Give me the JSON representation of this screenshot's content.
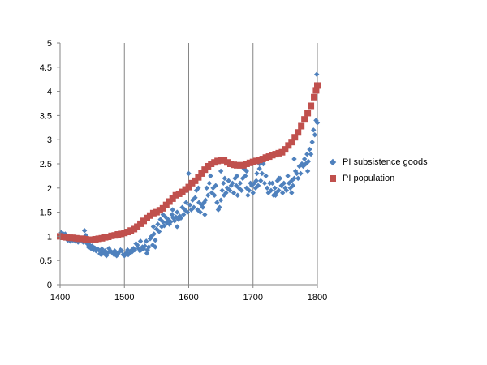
{
  "chart_data": {
    "type": "scatter",
    "xlim": [
      1400,
      1800
    ],
    "ylim": [
      0,
      5
    ],
    "x_ticks": [
      1400,
      1500,
      1600,
      1700,
      1800
    ],
    "x_tick_labels": [
      "1400",
      "1500",
      "1600",
      "1700",
      "1800"
    ],
    "y_ticks": [
      0,
      0.5,
      1,
      1.5,
      2,
      2.5,
      3,
      3.5,
      4,
      4.5,
      5
    ],
    "y_tick_labels": [
      "0",
      "0.5",
      "1",
      "1.5",
      "2",
      "2.5",
      "3",
      "3.5",
      "4",
      "4.5",
      "5"
    ],
    "grid": "vertical",
    "legend_position": "right",
    "series": [
      {
        "name": "PI subsistence goods",
        "color": "#4F81BD",
        "marker": "diamond",
        "points": [
          [
            1400,
            1.0
          ],
          [
            1402,
            1.08
          ],
          [
            1404,
            1.02
          ],
          [
            1406,
            0.97
          ],
          [
            1408,
            1.05
          ],
          [
            1410,
            0.95
          ],
          [
            1412,
            0.92
          ],
          [
            1414,
            0.98
          ],
          [
            1416,
            0.9
          ],
          [
            1418,
            0.94
          ],
          [
            1420,
            0.92
          ],
          [
            1422,
            0.95
          ],
          [
            1424,
            0.9
          ],
          [
            1426,
            0.93
          ],
          [
            1428,
            0.88
          ],
          [
            1430,
            0.92
          ],
          [
            1432,
            0.95
          ],
          [
            1434,
            0.9
          ],
          [
            1436,
            0.88
          ],
          [
            1438,
            1.12
          ],
          [
            1440,
            1.02
          ],
          [
            1442,
            0.85
          ],
          [
            1444,
            0.78
          ],
          [
            1446,
            0.82
          ],
          [
            1448,
            0.75
          ],
          [
            1450,
            0.8
          ],
          [
            1452,
            0.72
          ],
          [
            1454,
            0.76
          ],
          [
            1456,
            0.7
          ],
          [
            1458,
            0.74
          ],
          [
            1460,
            0.72
          ],
          [
            1462,
            0.64
          ],
          [
            1464,
            0.62
          ],
          [
            1466,
            0.68
          ],
          [
            1468,
            0.65
          ],
          [
            1470,
            0.7
          ],
          [
            1472,
            0.6
          ],
          [
            1474,
            0.66
          ],
          [
            1476,
            0.75
          ],
          [
            1478,
            0.7
          ],
          [
            1480,
            0.68
          ],
          [
            1482,
            0.65
          ],
          [
            1484,
            0.62
          ],
          [
            1486,
            0.66
          ],
          [
            1488,
            0.6
          ],
          [
            1490,
            0.64
          ],
          [
            1492,
            0.68
          ],
          [
            1494,
            0.72
          ],
          [
            1496,
            0.7
          ],
          [
            1498,
            0.62
          ],
          [
            1500,
            0.6
          ],
          [
            1502,
            0.64
          ],
          [
            1504,
            0.66
          ],
          [
            1506,
            0.62
          ],
          [
            1508,
            0.65
          ],
          [
            1510,
            0.7
          ],
          [
            1512,
            0.68
          ],
          [
            1514,
            0.75
          ],
          [
            1516,
            0.72
          ],
          [
            1518,
            0.85
          ],
          [
            1520,
            0.82
          ],
          [
            1522,
            0.75
          ],
          [
            1524,
            0.7
          ],
          [
            1526,
            0.72
          ],
          [
            1528,
            0.78
          ],
          [
            1530,
            0.74
          ],
          [
            1532,
            0.8
          ],
          [
            1534,
            0.9
          ],
          [
            1536,
            0.72
          ],
          [
            1538,
            0.78
          ],
          [
            1540,
            0.95
          ],
          [
            1542,
            1.0
          ],
          [
            1544,
            0.82
          ],
          [
            1546,
            1.05
          ],
          [
            1548,
            0.92
          ],
          [
            1550,
            1.15
          ],
          [
            1552,
            1.25
          ],
          [
            1554,
            1.1
          ],
          [
            1556,
            1.35
          ],
          [
            1558,
            1.2
          ],
          [
            1560,
            1.3
          ],
          [
            1562,
            1.22
          ],
          [
            1564,
            1.4
          ],
          [
            1566,
            1.28
          ],
          [
            1568,
            1.35
          ],
          [
            1570,
            1.25
          ],
          [
            1572,
            1.3
          ],
          [
            1574,
            1.45
          ],
          [
            1576,
            1.38
          ],
          [
            1578,
            1.32
          ],
          [
            1580,
            1.4
          ],
          [
            1582,
            1.5
          ],
          [
            1584,
            1.35
          ],
          [
            1586,
            1.42
          ],
          [
            1588,
            1.38
          ],
          [
            1590,
            1.6
          ],
          [
            1592,
            1.45
          ],
          [
            1594,
            1.55
          ],
          [
            1596,
            1.7
          ],
          [
            1598,
            1.5
          ],
          [
            1600,
            2.3
          ],
          [
            1602,
            1.65
          ],
          [
            1604,
            1.55
          ],
          [
            1606,
            1.75
          ],
          [
            1608,
            1.6
          ],
          [
            1610,
            1.8
          ],
          [
            1612,
            1.95
          ],
          [
            1614,
            1.55
          ],
          [
            1616,
            1.7
          ],
          [
            1618,
            1.5
          ],
          [
            1620,
            1.65
          ],
          [
            1622,
            1.6
          ],
          [
            1624,
            1.7
          ],
          [
            1626,
            1.75
          ],
          [
            1628,
            2.0
          ],
          [
            1630,
            1.85
          ],
          [
            1632,
            2.1
          ],
          [
            1634,
            2.25
          ],
          [
            1636,
            1.9
          ],
          [
            1638,
            2.0
          ],
          [
            1640,
            1.85
          ],
          [
            1642,
            2.05
          ],
          [
            1644,
            1.7
          ],
          [
            1646,
            1.55
          ],
          [
            1648,
            1.6
          ],
          [
            1650,
            1.75
          ],
          [
            1652,
            1.95
          ],
          [
            1654,
            2.1
          ],
          [
            1656,
            2.2
          ],
          [
            1658,
            1.9
          ],
          [
            1660,
            2.0
          ],
          [
            1662,
            2.15
          ],
          [
            1664,
            1.95
          ],
          [
            1666,
            2.05
          ],
          [
            1668,
            2.1
          ],
          [
            1670,
            1.9
          ],
          [
            1672,
            2.2
          ],
          [
            1674,
            2.05
          ],
          [
            1676,
            1.85
          ],
          [
            1678,
            2.0
          ],
          [
            1680,
            2.1
          ],
          [
            1682,
            1.95
          ],
          [
            1684,
            2.2
          ],
          [
            1686,
            2.4
          ],
          [
            1688,
            2.25
          ],
          [
            1690,
            2.0
          ],
          [
            1692,
            1.85
          ],
          [
            1694,
            1.95
          ],
          [
            1696,
            2.1
          ],
          [
            1698,
            2.05
          ],
          [
            1700,
            1.9
          ],
          [
            1702,
            2.1
          ],
          [
            1704,
            2.0
          ],
          [
            1706,
            2.3
          ],
          [
            1708,
            2.05
          ],
          [
            1710,
            2.4
          ],
          [
            1712,
            2.15
          ],
          [
            1714,
            2.3
          ],
          [
            1716,
            2.5
          ],
          [
            1718,
            2.1
          ],
          [
            1720,
            2.25
          ],
          [
            1722,
            2.0
          ],
          [
            1724,
            1.9
          ],
          [
            1726,
            2.1
          ],
          [
            1728,
            1.95
          ],
          [
            1730,
            2.1
          ],
          [
            1732,
            1.85
          ],
          [
            1734,
            2.0
          ],
          [
            1736,
            1.9
          ],
          [
            1738,
            2.15
          ],
          [
            1740,
            1.95
          ],
          [
            1742,
            2.2
          ],
          [
            1744,
            2.05
          ],
          [
            1746,
            1.9
          ],
          [
            1748,
            2.1
          ],
          [
            1750,
            2.0
          ],
          [
            1752,
            1.95
          ],
          [
            1754,
            2.25
          ],
          [
            1756,
            2.1
          ],
          [
            1758,
            2.0
          ],
          [
            1760,
            2.15
          ],
          [
            1762,
            2.05
          ],
          [
            1764,
            2.2
          ],
          [
            1766,
            2.35
          ],
          [
            1768,
            2.3
          ],
          [
            1770,
            2.2
          ],
          [
            1772,
            2.45
          ],
          [
            1774,
            2.3
          ],
          [
            1776,
            2.5
          ],
          [
            1778,
            2.45
          ],
          [
            1780,
            2.6
          ],
          [
            1782,
            2.5
          ],
          [
            1784,
            2.7
          ],
          [
            1786,
            2.55
          ],
          [
            1788,
            2.8
          ],
          [
            1790,
            2.7
          ],
          [
            1792,
            2.95
          ],
          [
            1794,
            3.2
          ],
          [
            1796,
            3.1
          ],
          [
            1798,
            3.4
          ],
          [
            1799,
            4.35
          ],
          [
            1800,
            3.35
          ],
          [
            1764,
            2.6
          ],
          [
            1740,
            2.2
          ],
          [
            1710,
            2.5
          ],
          [
            1690,
            2.35
          ],
          [
            1650,
            2.35
          ],
          [
            1630,
            2.45
          ],
          [
            1615,
            2.0
          ],
          [
            1596,
            1.95
          ],
          [
            1575,
            1.55
          ],
          [
            1560,
            1.45
          ],
          [
            1545,
            1.2
          ],
          [
            1525,
            0.9
          ],
          [
            1505,
            0.72
          ],
          [
            1485,
            0.7
          ],
          [
            1465,
            0.74
          ],
          [
            1445,
            0.88
          ],
          [
            1425,
            0.98
          ],
          [
            1405,
            1.05
          ],
          [
            1535,
            0.65
          ],
          [
            1548,
            0.78
          ],
          [
            1582,
            1.2
          ],
          [
            1625,
            1.45
          ],
          [
            1655,
            1.85
          ],
          [
            1675,
            2.25
          ],
          [
            1705,
            2.15
          ],
          [
            1735,
            1.85
          ],
          [
            1760,
            1.9
          ],
          [
            1785,
            2.35
          ]
        ]
      },
      {
        "name": "PI population",
        "color": "#C0504D",
        "marker": "square",
        "points": [
          [
            1400,
            1.0
          ],
          [
            1405,
            0.99
          ],
          [
            1410,
            0.98
          ],
          [
            1415,
            0.97
          ],
          [
            1420,
            0.97
          ],
          [
            1425,
            0.96
          ],
          [
            1430,
            0.95
          ],
          [
            1435,
            0.95
          ],
          [
            1440,
            0.94
          ],
          [
            1445,
            0.93
          ],
          [
            1450,
            0.93
          ],
          [
            1455,
            0.94
          ],
          [
            1460,
            0.95
          ],
          [
            1465,
            0.96
          ],
          [
            1470,
            0.98
          ],
          [
            1475,
            0.99
          ],
          [
            1480,
            1.01
          ],
          [
            1485,
            1.02
          ],
          [
            1490,
            1.04
          ],
          [
            1495,
            1.05
          ],
          [
            1500,
            1.07
          ],
          [
            1505,
            1.09
          ],
          [
            1510,
            1.12
          ],
          [
            1515,
            1.15
          ],
          [
            1520,
            1.2
          ],
          [
            1525,
            1.26
          ],
          [
            1530,
            1.32
          ],
          [
            1535,
            1.38
          ],
          [
            1540,
            1.43
          ],
          [
            1545,
            1.48
          ],
          [
            1550,
            1.5
          ],
          [
            1555,
            1.54
          ],
          [
            1560,
            1.58
          ],
          [
            1565,
            1.65
          ],
          [
            1570,
            1.72
          ],
          [
            1575,
            1.78
          ],
          [
            1580,
            1.85
          ],
          [
            1585,
            1.88
          ],
          [
            1590,
            1.92
          ],
          [
            1595,
            1.97
          ],
          [
            1600,
            2.02
          ],
          [
            1605,
            2.1
          ],
          [
            1610,
            2.15
          ],
          [
            1615,
            2.22
          ],
          [
            1620,
            2.3
          ],
          [
            1625,
            2.38
          ],
          [
            1630,
            2.45
          ],
          [
            1635,
            2.5
          ],
          [
            1640,
            2.53
          ],
          [
            1645,
            2.56
          ],
          [
            1650,
            2.58
          ],
          [
            1655,
            2.57
          ],
          [
            1660,
            2.53
          ],
          [
            1665,
            2.5
          ],
          [
            1670,
            2.48
          ],
          [
            1675,
            2.47
          ],
          [
            1680,
            2.47
          ],
          [
            1685,
            2.47
          ],
          [
            1690,
            2.5
          ],
          [
            1695,
            2.52
          ],
          [
            1700,
            2.54
          ],
          [
            1705,
            2.56
          ],
          [
            1710,
            2.58
          ],
          [
            1715,
            2.6
          ],
          [
            1720,
            2.63
          ],
          [
            1725,
            2.65
          ],
          [
            1730,
            2.68
          ],
          [
            1735,
            2.7
          ],
          [
            1740,
            2.72
          ],
          [
            1745,
            2.74
          ],
          [
            1750,
            2.8
          ],
          [
            1755,
            2.88
          ],
          [
            1760,
            2.95
          ],
          [
            1765,
            3.05
          ],
          [
            1770,
            3.15
          ],
          [
            1775,
            3.28
          ],
          [
            1780,
            3.42
          ],
          [
            1785,
            3.55
          ],
          [
            1790,
            3.7
          ],
          [
            1795,
            3.88
          ],
          [
            1798,
            4.02
          ],
          [
            1800,
            4.12
          ]
        ]
      }
    ]
  }
}
